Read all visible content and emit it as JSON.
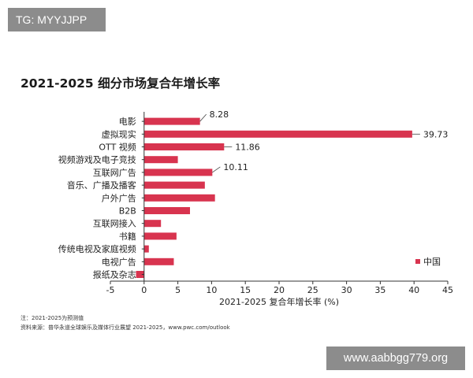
{
  "watermark_tag": "TG: MYYJJPP",
  "site_badge": "www.aabbgg779.org",
  "notes": {
    "estimate_note": "注：2021-2025为预测值",
    "source_note": "资料来源：普华永道全球娱乐及媒体行业展望 2021-2025，www.pwc.com/outlook"
  },
  "colors": {
    "bar": "#d8344f",
    "axis": "#333333",
    "background": "#ffffff"
  },
  "chart_data": {
    "type": "bar",
    "orientation": "horizontal",
    "title": "2021-2025 细分市场复合年增长率",
    "xlabel": "2021-2025 复合年增长率 (%)",
    "ylabel": "",
    "categories": [
      "电影",
      "虚拟现实",
      "OTT 视频",
      "视频游戏及电子竞技",
      "互联网广告",
      "音乐、广播及播客",
      "户外广告",
      "B2B",
      "互联网接入",
      "书籍",
      "传统电视及家庭视频",
      "电视广告",
      "报纸及杂志"
    ],
    "series": [
      {
        "name": "中国",
        "values": [
          8.28,
          39.73,
          11.86,
          5.0,
          10.11,
          9.0,
          10.5,
          6.8,
          2.5,
          4.8,
          0.7,
          4.4,
          -1.2
        ]
      }
    ],
    "data_labels": [
      {
        "category": "电影",
        "text": "8.28"
      },
      {
        "category": "虚拟现实",
        "text": "39.73"
      },
      {
        "category": "OTT 视频",
        "text": "11.86"
      },
      {
        "category": "互联网广告",
        "text": "10.11"
      }
    ],
    "xlim": [
      -5,
      45
    ],
    "xticks": [
      -5,
      0,
      5,
      10,
      15,
      20,
      25,
      30,
      35,
      40,
      45
    ],
    "grid": false,
    "legend_position": "bottom-right"
  }
}
